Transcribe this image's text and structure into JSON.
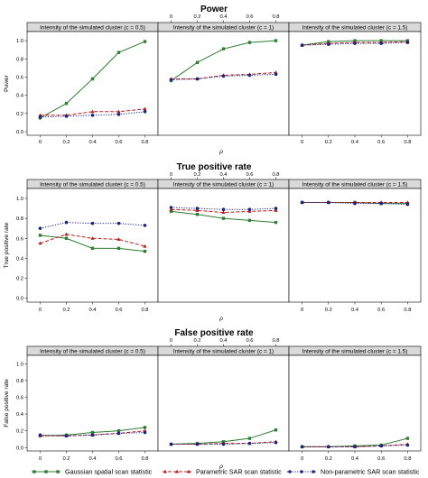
{
  "legend": [
    {
      "name": "Gaussian spatial  scan statistic",
      "color": "#2e7d32",
      "dash": "solid",
      "marker": "square"
    },
    {
      "name": "Parametric SAR scan statistic",
      "color": "#b71c1c",
      "dash": "dashed",
      "marker": "triangle"
    },
    {
      "name": "Non-parametric SAR scan statistic",
      "color": "#1a237e",
      "dash": "dotted",
      "marker": "circle"
    }
  ],
  "chart_data": [
    {
      "type": "line",
      "title": "Power",
      "ylabel": "Power",
      "xlabel": "ρ",
      "x": [
        0,
        0.2,
        0.4,
        0.6,
        0.8
      ],
      "xticks": [
        "0",
        "0.2",
        "0.4",
        "0.6",
        "0.8"
      ],
      "yticks": [
        "0.0",
        "0.2",
        "0.4",
        "0.6",
        "0.8",
        "1.0"
      ],
      "ylim": [
        -0.04,
        1.1
      ],
      "panels": [
        {
          "label": "Intensity of the simulated cluster (c = 0.5)",
          "series": [
            {
              "name": "Gaussian spatial  scan statistic",
              "values": [
                0.15,
                0.31,
                0.58,
                0.87,
                0.99
              ]
            },
            {
              "name": "Parametric SAR scan statistic",
              "values": [
                0.18,
                0.18,
                0.22,
                0.22,
                0.25
              ]
            },
            {
              "name": "Non-parametric SAR scan statistic",
              "values": [
                0.16,
                0.17,
                0.18,
                0.19,
                0.22
              ]
            }
          ]
        },
        {
          "label": "Intensity of the simulated cluster (c = 1)",
          "series": [
            {
              "name": "Gaussian spatial  scan statistic",
              "values": [
                0.56,
                0.76,
                0.91,
                0.98,
                1.0
              ]
            },
            {
              "name": "Parametric SAR scan statistic",
              "values": [
                0.58,
                0.58,
                0.62,
                0.63,
                0.65
              ]
            },
            {
              "name": "Non-parametric SAR scan statistic",
              "values": [
                0.57,
                0.58,
                0.61,
                0.62,
                0.63
              ]
            }
          ]
        },
        {
          "label": "Intensity of the simulated cluster (c = 1.5)",
          "series": [
            {
              "name": "Gaussian spatial  scan statistic",
              "values": [
                0.95,
                0.99,
                1.0,
                1.0,
                1.0
              ]
            },
            {
              "name": "Parametric SAR scan statistic",
              "values": [
                0.95,
                0.97,
                0.98,
                0.98,
                0.99
              ]
            },
            {
              "name": "Non-parametric SAR scan statistic",
              "values": [
                0.95,
                0.96,
                0.97,
                0.97,
                0.98
              ]
            }
          ]
        }
      ]
    },
    {
      "type": "line",
      "title": "True positive rate",
      "ylabel": "True positive rate",
      "xlabel": "ρ",
      "x": [
        0,
        0.2,
        0.4,
        0.6,
        0.8
      ],
      "xticks": [
        "0",
        "0.2",
        "0.4",
        "0.6",
        "0.8"
      ],
      "yticks": [
        "0.0",
        "0.2",
        "0.4",
        "0.6",
        "0.8",
        "1.0"
      ],
      "ylim": [
        -0.04,
        1.1
      ],
      "panels": [
        {
          "label": "Intensity of the simulated cluster (c = 0.5)",
          "series": [
            {
              "name": "Gaussian spatial  scan statistic",
              "values": [
                0.63,
                0.6,
                0.5,
                0.5,
                0.47
              ]
            },
            {
              "name": "Parametric SAR scan statistic",
              "values": [
                0.55,
                0.64,
                0.6,
                0.59,
                0.52
              ]
            },
            {
              "name": "Non-parametric SAR scan statistic",
              "values": [
                0.7,
                0.76,
                0.75,
                0.75,
                0.73
              ]
            }
          ]
        },
        {
          "label": "Intensity of the simulated cluster (c = 1)",
          "series": [
            {
              "name": "Gaussian spatial  scan statistic",
              "values": [
                0.87,
                0.84,
                0.8,
                0.78,
                0.76
              ]
            },
            {
              "name": "Parametric SAR scan statistic",
              "values": [
                0.89,
                0.88,
                0.86,
                0.87,
                0.88
              ]
            },
            {
              "name": "Non-parametric SAR scan statistic",
              "values": [
                0.91,
                0.9,
                0.89,
                0.89,
                0.9
              ]
            }
          ]
        },
        {
          "label": "Intensity of the simulated cluster (c = 1.5)",
          "series": [
            {
              "name": "Gaussian spatial  scan statistic",
              "values": [
                0.96,
                0.96,
                0.96,
                0.95,
                0.95
              ]
            },
            {
              "name": "Parametric SAR scan statistic",
              "values": [
                0.96,
                0.96,
                0.96,
                0.96,
                0.96
              ]
            },
            {
              "name": "Non-parametric SAR scan statistic",
              "values": [
                0.96,
                0.96,
                0.95,
                0.95,
                0.94
              ]
            }
          ]
        }
      ]
    },
    {
      "type": "line",
      "title": "False positive rate",
      "ylabel": "False positive rate",
      "xlabel": "ρ",
      "x": [
        0,
        0.2,
        0.4,
        0.6,
        0.8
      ],
      "xticks": [
        "0",
        "0.2",
        "0.4",
        "0.6",
        "0.8"
      ],
      "yticks": [
        "0.0",
        "0.2",
        "0.4",
        "0.6",
        "0.8",
        "1.0"
      ],
      "ylim": [
        -0.04,
        1.1
      ],
      "panels": [
        {
          "label": "Intensity of the simulated cluster (c = 0.5)",
          "series": [
            {
              "name": "Gaussian spatial  scan statistic",
              "values": [
                0.14,
                0.15,
                0.18,
                0.2,
                0.24
              ]
            },
            {
              "name": "Parametric SAR scan statistic",
              "values": [
                0.14,
                0.14,
                0.15,
                0.17,
                0.2
              ]
            },
            {
              "name": "Non-parametric SAR scan statistic",
              "values": [
                0.15,
                0.14,
                0.15,
                0.17,
                0.18
              ]
            }
          ]
        },
        {
          "label": "Intensity of the simulated cluster (c = 1)",
          "series": [
            {
              "name": "Gaussian spatial  scan statistic",
              "values": [
                0.04,
                0.05,
                0.07,
                0.11,
                0.21
              ]
            },
            {
              "name": "Parametric SAR scan statistic",
              "values": [
                0.04,
                0.04,
                0.05,
                0.05,
                0.07
              ]
            },
            {
              "name": "Non-parametric SAR scan statistic",
              "values": [
                0.04,
                0.04,
                0.04,
                0.05,
                0.06
              ]
            }
          ]
        },
        {
          "label": "Intensity of the simulated cluster (c = 1.5)",
          "series": [
            {
              "name": "Gaussian spatial  scan statistic",
              "values": [
                0.01,
                0.01,
                0.02,
                0.03,
                0.11
              ]
            },
            {
              "name": "Parametric SAR scan statistic",
              "values": [
                0.01,
                0.01,
                0.01,
                0.02,
                0.04
              ]
            },
            {
              "name": "Non-parametric SAR scan statistic",
              "values": [
                0.01,
                0.01,
                0.01,
                0.02,
                0.03
              ]
            }
          ]
        }
      ]
    }
  ]
}
